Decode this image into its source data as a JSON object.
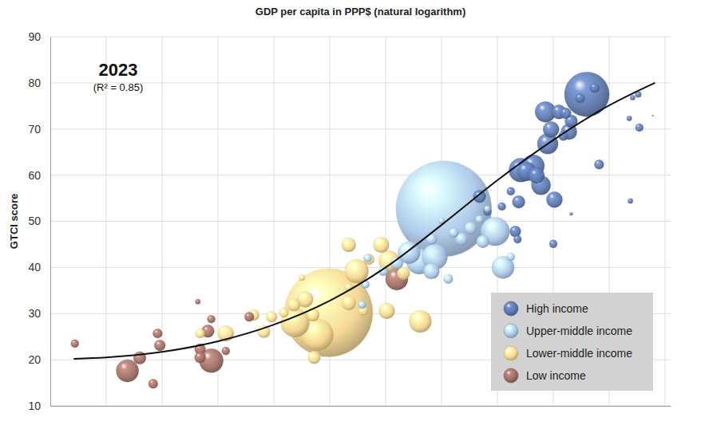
{
  "chart_data": {
    "type": "bubble",
    "x_label": "GDP per capita in PPP$ (natural logarithm)",
    "y_label": "GTCI score",
    "annotations": [
      "2023",
      "(R² = 0.85)"
    ],
    "xlim": [
      6.0,
      11.55
    ],
    "xticks": [
      6.5,
      7,
      7.5,
      8,
      8.5,
      9,
      9.5,
      10,
      10.5,
      11,
      11.5
    ],
    "ylim": [
      10,
      90
    ],
    "yticks": [
      10,
      20,
      30,
      40,
      50,
      60,
      70,
      80,
      90
    ],
    "grid": true,
    "tick_labels": "y",
    "legend": "lower right",
    "series": [
      {
        "name": "High income",
        "color": "#5a74a8",
        "marker": "circle",
        "x": [
          9.84,
          9.91,
          10.04,
          10.12,
          10.19,
          10.16,
          10.18,
          10.21,
          10.26,
          10.32,
          10.35,
          10.39,
          10.43,
          10.48,
          10.45,
          10.55,
          10.61,
          10.64,
          10.59,
          10.51,
          10.5,
          10.66,
          10.74,
          10.8,
          10.87,
          10.91,
          10.66,
          11.18,
          11.21,
          11.26,
          11.27,
          11.19,
          11.39
        ],
        "values": [
          55.4,
          52.1,
          53.2,
          56.5,
          54.2,
          47.8,
          46.1,
          61.1,
          60.8,
          62.0,
          59.9,
          57.8,
          73.7,
          69.9,
          66.8,
          73.7,
          73.4,
          69.4,
          68.5,
          54.7,
          45.1,
          71.7,
          76.7,
          77.5,
          78.9,
          62.3,
          51.6,
          72.3,
          76.8,
          77.5,
          70.3,
          54.4,
          72.9
        ],
        "sizes": [
          25,
          10,
          10,
          10,
          25,
          19,
          10,
          89,
          57,
          78,
          40,
          57,
          67,
          40,
          67,
          32,
          19,
          40,
          14,
          40,
          10,
          25,
          14,
          310,
          14,
          14,
          1.6,
          4,
          4,
          6,
          10,
          4,
          0.4
        ]
      },
      {
        "name": "Upper-middle income",
        "color": "#a8c4e6",
        "marker": "circle",
        "x": [
          8.79,
          8.82,
          8.84,
          8.98,
          9.1,
          9.21,
          9.3,
          9.41,
          9.44,
          9.52,
          9.56,
          9.41,
          9.61,
          9.68,
          9.76,
          9.84,
          9.87,
          9.98,
          10.05,
          10.12,
          9.5,
          9.91
        ],
        "values": [
          31.9,
          36.3,
          42.0,
          39.2,
          40.9,
          43.2,
          41.3,
          39.2,
          42.3,
          52.7,
          37.5,
          46.1,
          47.5,
          46.1,
          48.5,
          50.4,
          45.6,
          47.8,
          40.0,
          42.3,
          50.1,
          52.7
        ],
        "sizes": [
          10,
          10,
          10,
          14,
          25,
          78,
          101,
          40,
          101,
          1410,
          14,
          19,
          14,
          25,
          25,
          10,
          25,
          128,
          78,
          10,
          6,
          6
        ]
      },
      {
        "name": "Lower-middle income",
        "color": "#f2d48e",
        "marker": "circle",
        "x": [
          7.34,
          7.57,
          7.82,
          7.91,
          7.98,
          8.09,
          8.18,
          8.25,
          8.19,
          8.28,
          8.35,
          8.49,
          8.39,
          8.36,
          8.67,
          8.74,
          8.67,
          8.67,
          8.8,
          8.96,
          9.01,
          9.31,
          9.03,
          8.85,
          9.16
        ],
        "values": [
          25.7,
          25.7,
          29.7,
          26.1,
          29.3,
          30.2,
          31.9,
          37.8,
          28.0,
          33.1,
          29.7,
          30.2,
          25.4,
          20.5,
          44.9,
          39.2,
          32.3,
          35.7,
          30.6,
          44.9,
          30.6,
          28.3,
          41.4,
          41.8,
          38.7
        ],
        "sizes": [
          14,
          40,
          19,
          25,
          19,
          14,
          25,
          6,
          128,
          40,
          25,
          1200,
          158,
          25,
          32,
          89,
          32,
          10,
          14,
          40,
          40,
          78,
          67,
          19,
          25
        ]
      },
      {
        "name": "Low income",
        "color": "#9b6b62",
        "marker": "circle",
        "x": [
          6.22,
          6.69,
          6.8,
          6.92,
          6.96,
          6.98,
          7.32,
          7.34,
          7.34,
          7.41,
          7.44,
          7.44,
          7.57,
          7.78,
          9.1
        ],
        "values": [
          23.5,
          17.6,
          20.4,
          14.8,
          25.7,
          23.1,
          32.6,
          22.3,
          20.5,
          26.2,
          28.8,
          19.8,
          21.9,
          29.3,
          37.5
        ],
        "sizes": [
          10,
          78,
          25,
          14,
          14,
          19,
          4,
          19,
          19,
          25,
          10,
          89,
          10,
          14,
          78
        ]
      },
      {
        "type": "line",
        "color": "#111111",
        "line_style": "solid",
        "x": [
          6.21,
          6.5,
          7.0,
          7.5,
          8.0,
          8.5,
          9.0,
          9.5,
          10.0,
          10.5,
          11.0,
          11.41
        ],
        "values": [
          20.2,
          20.5,
          21.7,
          24.0,
          27.6,
          32.8,
          40.0,
          49.2,
          58.9,
          67.6,
          75.1,
          80.0
        ]
      }
    ]
  }
}
